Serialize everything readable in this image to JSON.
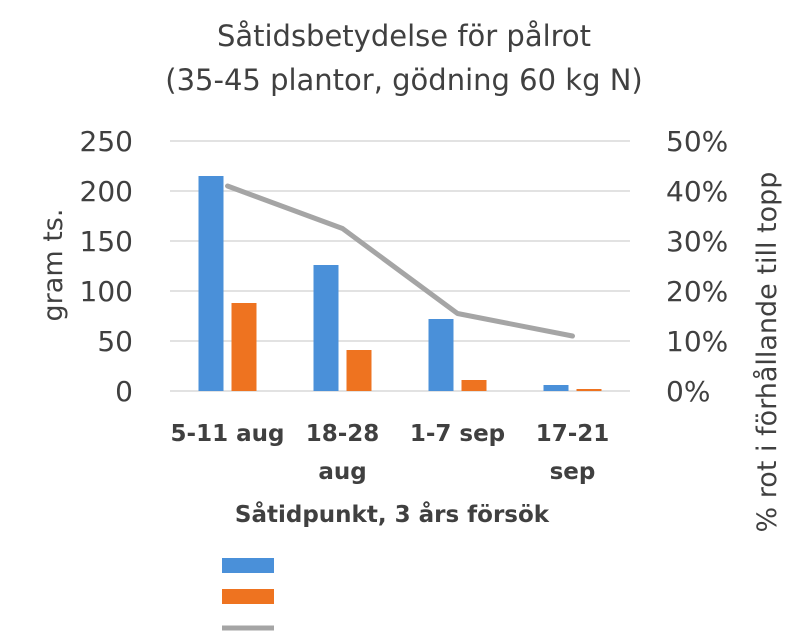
{
  "chart_data": {
    "type": "bar",
    "title": "Såtidsbetydelse för pålrot",
    "subtitle": "(35-45 plantor, gödning 60 kg N)",
    "xlabel": "Såtidpunkt, 3 års försök",
    "ylabel": "gram ts.",
    "y2label": "% rot i förhållande till topp",
    "categories": [
      [
        "5-11 aug"
      ],
      [
        "18-28",
        "aug"
      ],
      [
        "1-7 sep"
      ],
      [
        "17-21",
        "sep"
      ]
    ],
    "ylim": [
      0,
      250
    ],
    "yticks": [
      "250",
      "200",
      "150",
      "100",
      "50",
      "0"
    ],
    "y2lim": [
      0,
      0.5
    ],
    "y2ticks": [
      "50%",
      "40%",
      "30%",
      "20%",
      "10%",
      "0%"
    ],
    "grid": true,
    "legend_position": "bottom",
    "series": [
      {
        "type": "bar",
        "axis": "left",
        "color": "#4a90d9",
        "values": [
          215,
          126,
          72,
          6
        ]
      },
      {
        "type": "bar",
        "axis": "left",
        "color": "#ee7320",
        "values": [
          88,
          41,
          11,
          2
        ]
      },
      {
        "type": "line",
        "axis": "right",
        "color": "#a5a5a5",
        "values": [
          0.41,
          0.325,
          0.155,
          0.11
        ]
      }
    ]
  }
}
